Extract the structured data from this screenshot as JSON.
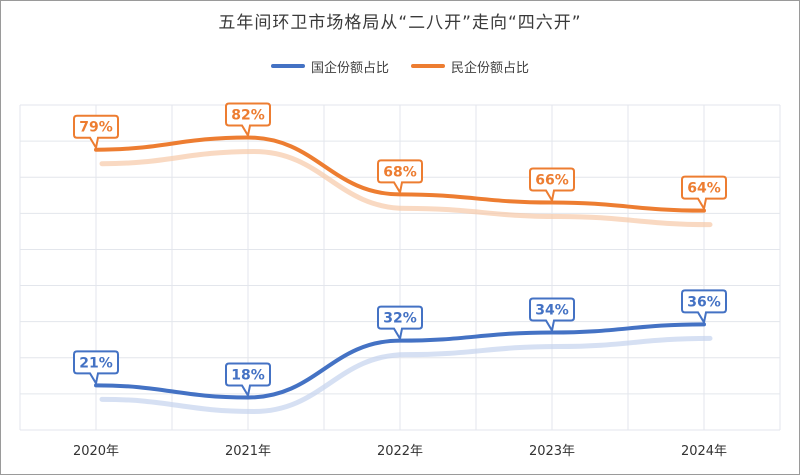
{
  "chart_data": {
    "type": "line",
    "title": "五年间环卫市场格局从“二八开”走向“四六开”",
    "categories": [
      "2020年",
      "2021年",
      "2022年",
      "2023年",
      "2024年"
    ],
    "series": [
      {
        "name": "国企份额占比",
        "values": [
          21,
          18,
          32,
          34,
          36
        ],
        "labels": [
          "21%",
          "18%",
          "32%",
          "34%",
          "36%"
        ],
        "color": "#4472c4"
      },
      {
        "name": "民企份额占比",
        "values": [
          79,
          82,
          68,
          66,
          64
        ],
        "labels": [
          "79%",
          "82%",
          "68%",
          "66%",
          "64%"
        ],
        "color": "#ed7d31"
      }
    ],
    "ylim": [
      10,
      90
    ],
    "grid": true,
    "legend_position": "top-center",
    "smooth": true
  },
  "colors": {
    "gridline": "#e3e6ec",
    "frame": "#9a9a9a",
    "shadow_orange": "#f6c9a8",
    "shadow_blue": "#c5d3ee"
  }
}
